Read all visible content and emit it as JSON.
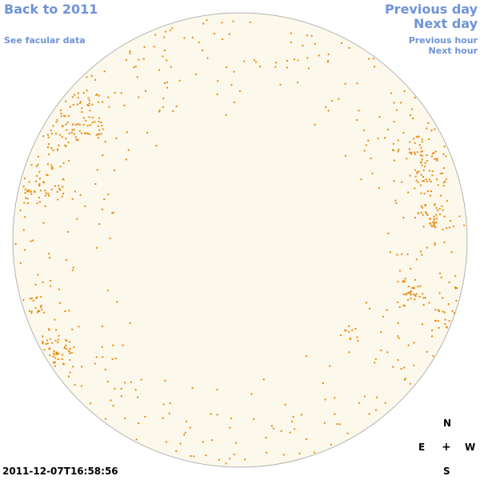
{
  "nav": {
    "back": "Back to 2011",
    "facular": "See facular data",
    "previous_day": "Previous day",
    "next_day": "Next day",
    "previous_hour": "Previous hour",
    "next_hour": "Next hour"
  },
  "compass": {
    "north": "N",
    "east": "E",
    "center": "+",
    "west": "W",
    "south": "S"
  },
  "timestamp": "2011-12-07T16:58:56",
  "colors": {
    "link": "#6f93d8",
    "disk_fill": "#fdf8ec",
    "disk_outline": "#b3b3b3",
    "facula": "#e88a0c"
  }
}
